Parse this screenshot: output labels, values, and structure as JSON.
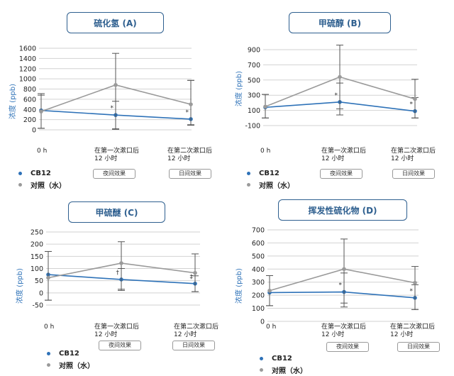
{
  "colors": {
    "cb12": "#2e72b8",
    "control": "#9a9a9a",
    "accent": "#2e5f8f"
  },
  "x_labels": [
    {
      "line1": "0 h",
      "line2": ""
    },
    {
      "line1": "在第一次漱口后",
      "line2": "12 小时"
    },
    {
      "line1": "在第二次漱口后",
      "line2": "12 小时"
    }
  ],
  "tags": [
    "夜间效果",
    "日间效果"
  ],
  "legend": {
    "cb12": "CB12",
    "control": "对照（水）"
  },
  "ylabel": "浓度 (ppb)",
  "chart_data": [
    {
      "type": "line",
      "title": "硫化氢 (A)",
      "ylabel": "浓度 (ppb)",
      "ylim": [
        0,
        1600
      ],
      "yticks": [
        0,
        200,
        400,
        600,
        800,
        1000,
        1200,
        1400,
        1600
      ],
      "categories": [
        "0 h",
        "在第一次漱口后 12 小时",
        "在第二次漱口后 12 小时"
      ],
      "series": [
        {
          "name": "CB12",
          "values": [
            380,
            290,
            210
          ],
          "err_low": [
            30,
            20,
            100
          ],
          "err_high": [
            710,
            560,
            970
          ]
        },
        {
          "name": "对照（水）",
          "values": [
            360,
            880,
            500
          ],
          "err_low": [
            30,
            10,
            90
          ],
          "err_high": [
            680,
            1500,
            970
          ]
        }
      ],
      "markers": [
        "",
        "*",
        "*"
      ]
    },
    {
      "type": "line",
      "title": "甲硫醇 (B)",
      "ylabel": "浓度 (ppb)",
      "ylim": [
        -100,
        900
      ],
      "yticks": [
        -100,
        100,
        300,
        500,
        700,
        900
      ],
      "categories": [
        "0 h",
        "在第一次漱口后 12 小时",
        "在第二次漱口后 12 小时"
      ],
      "series": [
        {
          "name": "CB12",
          "values": [
            140,
            210,
            90
          ],
          "err_low": [
            0,
            40,
            0
          ],
          "err_high": [
            310,
            460,
            270
          ]
        },
        {
          "name": "对照（水）",
          "values": [
            150,
            540,
            250
          ],
          "err_low": [
            0,
            120,
            0
          ],
          "err_high": [
            310,
            960,
            510
          ]
        }
      ],
      "markers": [
        "",
        "*",
        "*"
      ]
    },
    {
      "type": "line",
      "title": "甲硫醚 (C)",
      "ylabel": "浓度 (ppb)",
      "ylim": [
        -50,
        250
      ],
      "yticks": [
        -50,
        0,
        50,
        100,
        150,
        200,
        250
      ],
      "categories": [
        "0 h",
        "在第一次漱口后 12 小时",
        "在第二次漱口后 12 小时"
      ],
      "series": [
        {
          "name": "CB12",
          "values": [
            75,
            55,
            38
          ],
          "err_low": [
            -30,
            10,
            5
          ],
          "err_high": [
            170,
            100,
            70
          ]
        },
        {
          "name": "对照（水）",
          "values": [
            62,
            122,
            82
          ],
          "err_low": [
            -30,
            15,
            5
          ],
          "err_high": [
            170,
            210,
            160
          ]
        }
      ],
      "markers": [
        "",
        "†",
        "‡"
      ]
    },
    {
      "type": "line",
      "title": "挥发性硫化物 (D)",
      "ylabel": "浓度 (ppb)",
      "ylim": [
        0,
        700
      ],
      "yticks": [
        0,
        100,
        200,
        300,
        400,
        500,
        600,
        700
      ],
      "categories": [
        "0 h",
        "在第一次漱口后 12 小时",
        "在第二次漱口后 12 小时"
      ],
      "series": [
        {
          "name": "CB12",
          "values": [
            220,
            225,
            180
          ],
          "err_low": [
            120,
            140,
            90
          ],
          "err_high": [
            350,
            370,
            280
          ]
        },
        {
          "name": "对照（水）",
          "values": [
            235,
            400,
            295
          ],
          "err_low": [
            120,
            110,
            90
          ],
          "err_high": [
            350,
            630,
            420
          ]
        }
      ],
      "markers": [
        "",
        "*",
        "*"
      ]
    }
  ]
}
